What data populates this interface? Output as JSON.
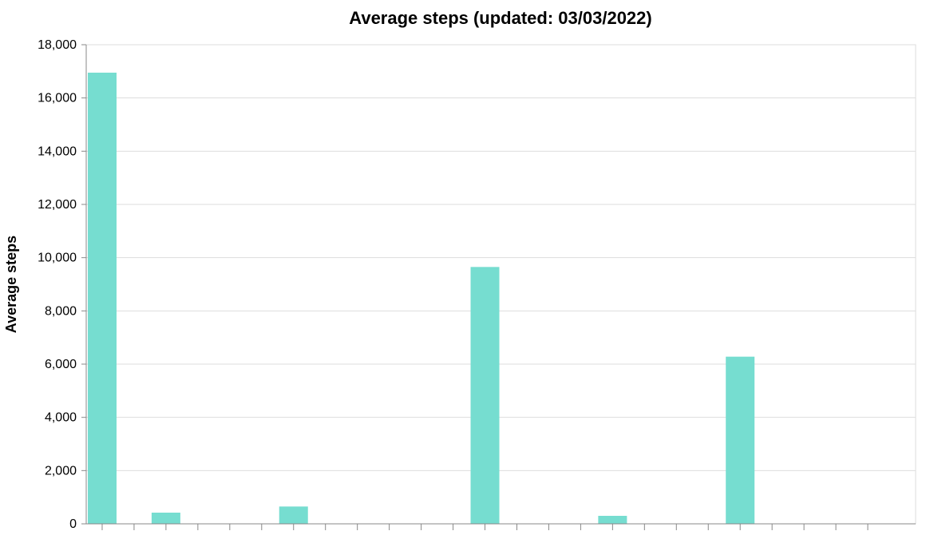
{
  "chart_data": {
    "type": "bar",
    "title": "Average steps (updated: 03/03/2022)",
    "ylabel": "Average steps",
    "xlabel": "",
    "ylim": [
      0,
      18000
    ],
    "y_ticks": [
      0,
      2000,
      4000,
      6000,
      8000,
      10000,
      12000,
      14000,
      16000,
      18000
    ],
    "y_tick_labels": [
      "0",
      "2,000",
      "4,000",
      "6,000",
      "8,000",
      "10,000",
      "12,000",
      "14,000",
      "16,000",
      "18,000"
    ],
    "grid": true,
    "bar_color": "#76ddd0",
    "values": [
      16950,
      0,
      420,
      0,
      0,
      0,
      650,
      0,
      0,
      0,
      0,
      0,
      9650,
      0,
      0,
      0,
      300,
      0,
      0,
      0,
      6280,
      0,
      0,
      0,
      0
    ]
  }
}
